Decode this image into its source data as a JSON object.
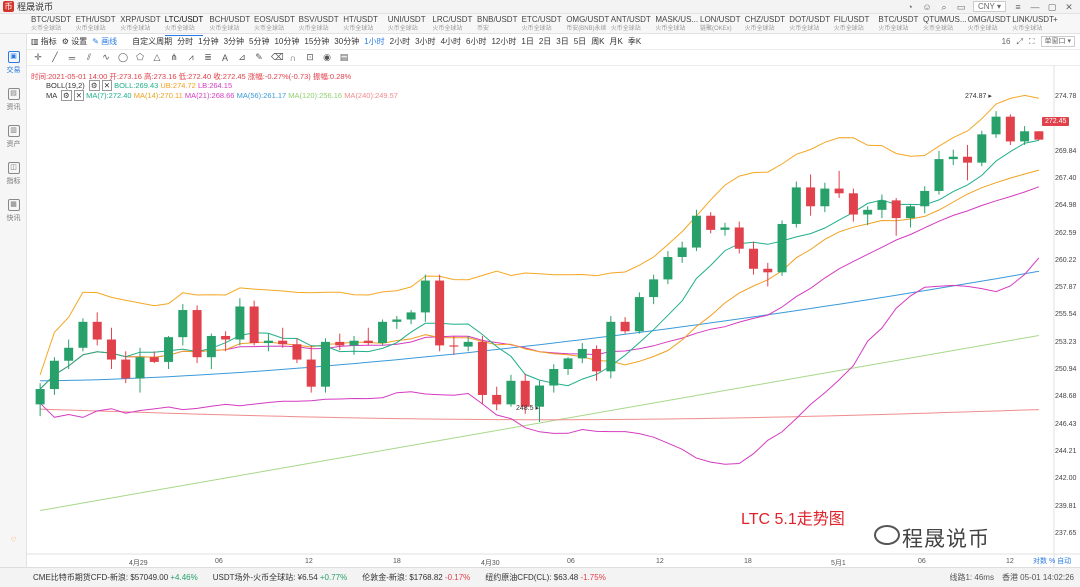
{
  "app": {
    "title": "程晟说币"
  },
  "titlebar": {
    "currency": "CNY"
  },
  "tickers": [
    {
      "pair": "BTC/USDT",
      "sub": "火币全球站"
    },
    {
      "pair": "ETH/USDT",
      "sub": "火币全球站"
    },
    {
      "pair": "XRP/USDT",
      "sub": "火币全球站"
    },
    {
      "pair": "LTC/USDT",
      "sub": "火币全球站"
    },
    {
      "pair": "BCH/USDT",
      "sub": "火币全球站"
    },
    {
      "pair": "EOS/USDT",
      "sub": "火币全球站"
    },
    {
      "pair": "BSV/USDT",
      "sub": "火币全球站"
    },
    {
      "pair": "HT/USDT",
      "sub": "火币全球站"
    },
    {
      "pair": "UNI/USDT",
      "sub": "火币全球站"
    },
    {
      "pair": "LRC/USDT",
      "sub": "火币全球站"
    },
    {
      "pair": "BNB/USDT",
      "sub": "币安"
    },
    {
      "pair": "ETC/USDT",
      "sub": "火币全球站"
    },
    {
      "pair": "OMG/USDT",
      "sub": "币安(BNB)永续"
    },
    {
      "pair": "ANT/USDT",
      "sub": "火币全球站"
    },
    {
      "pair": "MASK/US...",
      "sub": "火币全球站"
    },
    {
      "pair": "LON/USDT",
      "sub": "链聚(OKEx)"
    },
    {
      "pair": "CHZ/USDT",
      "sub": "火币全球站"
    },
    {
      "pair": "DOT/USDT",
      "sub": "火币全球站"
    },
    {
      "pair": "FIL/USDT",
      "sub": "火币全球站"
    },
    {
      "pair": "BTC/USDT",
      "sub": "火币全球站"
    },
    {
      "pair": "QTUM/US...",
      "sub": "火币全球站"
    },
    {
      "pair": "OMG/USDT",
      "sub": "火币全球站"
    },
    {
      "pair": "LINK/USDT",
      "sub": "火币全球站"
    }
  ],
  "sidebar": [
    {
      "label": "交易",
      "icon": "trade-icon"
    },
    {
      "label": "资讯",
      "icon": "news-icon"
    },
    {
      "label": "资产",
      "icon": "assets-icon"
    },
    {
      "label": "指标",
      "icon": "indicator-icon"
    },
    {
      "label": "快讯",
      "icon": "flash-icon"
    }
  ],
  "toolbar": {
    "indicator": "指标",
    "settings": "设置",
    "drawing": "画线",
    "custom_period": "自定义周期",
    "periods": [
      "分时",
      "1分钟",
      "3分钟",
      "5分钟",
      "10分钟",
      "15分钟",
      "30分钟",
      "1小时",
      "2小时",
      "3小时",
      "4小时",
      "6小时",
      "12小时",
      "1日",
      "2日",
      "3日",
      "5日",
      "周K",
      "月K",
      "季K"
    ],
    "active_period": "1小时",
    "zoom": "16",
    "layout": "单窗口"
  },
  "info": {
    "ohlc": "时间:2021-05-01 14:00  开:273.16  高:273.16  低:272.40  收:272.45  涨幅:-0.27%(-0.73)  振幅:0.28%",
    "boll_name": "BOLL(19,2)",
    "boll_mid": "BOLL:269.43",
    "boll_ub": "UB:274.72",
    "boll_lb": "LB:264.15",
    "ma_name": "MA",
    "ma7": "MA(7):272.40",
    "ma14": "MA(14):270.11",
    "ma21": "MA(21):268.66",
    "ma56": "MA(56):261.17",
    "ma120": "MA(120):256.16",
    "ma240": "MA(240):249.57"
  },
  "colors": {
    "up": "#27a06a",
    "down": "#e0414b",
    "boll": "#f5a623",
    "ma7": "#1fae8a",
    "ma14": "#f0a020",
    "ma21": "#d43bc0",
    "ma56": "#3a9ad9",
    "ma120": "#a8d88a",
    "ma240": "#f08c8c"
  },
  "price_tag": "272.45",
  "annotations": {
    "high": "274.87",
    "low": "248.5"
  },
  "watermark": "LTC 5.1走势图",
  "brand": "程晟说币",
  "bottom_controls": "对数 % 自动",
  "statusbar": {
    "items": [
      {
        "label": "CME比特币期货CFD-新浪:",
        "value": "$57049.00",
        "change": "+4.46%",
        "dir": "up"
      },
      {
        "label": "USDT场外-火币全球站:",
        "value": "¥6.54",
        "change": "+0.77%",
        "dir": "up"
      },
      {
        "label": "伦敦金-新浪:",
        "value": "$1768.82",
        "change": "-0.17%",
        "dir": "down"
      },
      {
        "label": "纽约原油CFD(CL):",
        "value": "$63.48",
        "change": "-1.75%",
        "dir": "down"
      }
    ],
    "latency": "线路1: 46ms",
    "time": "香港 05-01 14:02:26"
  },
  "chart_data": {
    "type": "candlestick",
    "ylim": [
      237.65,
      277.0
    ],
    "y_ticks": [
      "274.78",
      "272.45",
      "269.84",
      "267.40",
      "264.98",
      "262.59",
      "260.22",
      "257.87",
      "255.54",
      "253.23",
      "250.94",
      "248.68",
      "246.43",
      "244.21",
      "242.00",
      "239.81",
      "237.65"
    ],
    "x_ticks": [
      "4月29",
      "06",
      "12",
      "18",
      "4月30",
      "06",
      "12",
      "18",
      "5月1",
      "06",
      "12"
    ],
    "candles": [
      {
        "o": 250.0,
        "h": 251.8,
        "l": 249.0,
        "c": 251.3
      },
      {
        "o": 251.3,
        "h": 254.0,
        "l": 250.8,
        "c": 253.7
      },
      {
        "o": 253.7,
        "h": 255.5,
        "l": 253.0,
        "c": 254.8
      },
      {
        "o": 254.8,
        "h": 257.3,
        "l": 254.5,
        "c": 257.0
      },
      {
        "o": 257.0,
        "h": 257.8,
        "l": 255.0,
        "c": 255.5
      },
      {
        "o": 255.5,
        "h": 256.5,
        "l": 253.0,
        "c": 253.8
      },
      {
        "o": 253.8,
        "h": 254.5,
        "l": 251.8,
        "c": 252.2
      },
      {
        "o": 252.2,
        "h": 254.8,
        "l": 251.0,
        "c": 254.0
      },
      {
        "o": 254.0,
        "h": 254.5,
        "l": 253.5,
        "c": 253.6
      },
      {
        "o": 253.6,
        "h": 255.8,
        "l": 253.0,
        "c": 255.7
      },
      {
        "o": 255.7,
        "h": 258.5,
        "l": 255.0,
        "c": 258.0
      },
      {
        "o": 258.0,
        "h": 258.4,
        "l": 253.5,
        "c": 254.0
      },
      {
        "o": 254.0,
        "h": 256.0,
        "l": 253.0,
        "c": 255.8
      },
      {
        "o": 255.8,
        "h": 256.2,
        "l": 254.5,
        "c": 255.5
      },
      {
        "o": 255.5,
        "h": 259.0,
        "l": 255.0,
        "c": 258.3
      },
      {
        "o": 258.3,
        "h": 258.8,
        "l": 255.0,
        "c": 255.2
      },
      {
        "o": 255.2,
        "h": 256.0,
        "l": 254.5,
        "c": 255.4
      },
      {
        "o": 255.4,
        "h": 256.5,
        "l": 254.8,
        "c": 255.1
      },
      {
        "o": 255.1,
        "h": 255.6,
        "l": 253.5,
        "c": 253.8
      },
      {
        "o": 253.8,
        "h": 255.0,
        "l": 251.0,
        "c": 251.5
      },
      {
        "o": 251.5,
        "h": 255.6,
        "l": 251.0,
        "c": 255.3
      },
      {
        "o": 255.3,
        "h": 256.0,
        "l": 254.6,
        "c": 255.0
      },
      {
        "o": 255.0,
        "h": 255.8,
        "l": 254.2,
        "c": 255.4
      },
      {
        "o": 255.4,
        "h": 256.5,
        "l": 255.0,
        "c": 255.2
      },
      {
        "o": 255.2,
        "h": 257.2,
        "l": 255.0,
        "c": 257.0
      },
      {
        "o": 257.0,
        "h": 257.5,
        "l": 256.4,
        "c": 257.2
      },
      {
        "o": 257.2,
        "h": 258.0,
        "l": 256.8,
        "c": 257.8
      },
      {
        "o": 257.8,
        "h": 261.0,
        "l": 257.0,
        "c": 260.5
      },
      {
        "o": 260.5,
        "h": 261.0,
        "l": 254.5,
        "c": 255.0
      },
      {
        "o": 255.0,
        "h": 255.8,
        "l": 254.2,
        "c": 254.9
      },
      {
        "o": 254.9,
        "h": 255.8,
        "l": 254.5,
        "c": 255.3
      },
      {
        "o": 255.3,
        "h": 255.8,
        "l": 250.0,
        "c": 250.8
      },
      {
        "o": 250.8,
        "h": 251.5,
        "l": 249.5,
        "c": 250.0
      },
      {
        "o": 250.0,
        "h": 252.5,
        "l": 249.8,
        "c": 252.0
      },
      {
        "o": 252.0,
        "h": 252.6,
        "l": 249.2,
        "c": 249.8
      },
      {
        "o": 249.8,
        "h": 252.0,
        "l": 248.5,
        "c": 251.6
      },
      {
        "o": 251.6,
        "h": 253.4,
        "l": 251.0,
        "c": 253.0
      },
      {
        "o": 253.0,
        "h": 254.0,
        "l": 252.5,
        "c": 253.9
      },
      {
        "o": 253.9,
        "h": 255.2,
        "l": 253.5,
        "c": 254.7
      },
      {
        "o": 254.7,
        "h": 255.0,
        "l": 252.0,
        "c": 252.8
      },
      {
        "o": 252.8,
        "h": 257.5,
        "l": 252.2,
        "c": 257.0
      },
      {
        "o": 257.0,
        "h": 257.4,
        "l": 256.0,
        "c": 256.2
      },
      {
        "o": 256.2,
        "h": 259.5,
        "l": 256.0,
        "c": 259.1
      },
      {
        "o": 259.1,
        "h": 261.0,
        "l": 258.5,
        "c": 260.6
      },
      {
        "o": 260.6,
        "h": 263.0,
        "l": 260.2,
        "c": 262.5
      },
      {
        "o": 262.5,
        "h": 263.8,
        "l": 262.0,
        "c": 263.3
      },
      {
        "o": 263.3,
        "h": 266.5,
        "l": 263.0,
        "c": 266.0
      },
      {
        "o": 266.0,
        "h": 266.3,
        "l": 264.5,
        "c": 264.8
      },
      {
        "o": 264.8,
        "h": 265.4,
        "l": 264.3,
        "c": 265.0
      },
      {
        "o": 265.0,
        "h": 265.5,
        "l": 262.8,
        "c": 263.2
      },
      {
        "o": 263.2,
        "h": 263.8,
        "l": 261.0,
        "c": 261.5
      },
      {
        "o": 261.5,
        "h": 262.0,
        "l": 260.0,
        "c": 261.2
      },
      {
        "o": 261.2,
        "h": 265.6,
        "l": 260.9,
        "c": 265.3
      },
      {
        "o": 265.3,
        "h": 268.9,
        "l": 265.0,
        "c": 268.4
      },
      {
        "o": 268.4,
        "h": 269.5,
        "l": 266.0,
        "c": 266.8
      },
      {
        "o": 266.8,
        "h": 268.8,
        "l": 266.3,
        "c": 268.3
      },
      {
        "o": 268.3,
        "h": 269.8,
        "l": 267.5,
        "c": 267.9
      },
      {
        "o": 267.9,
        "h": 268.3,
        "l": 265.5,
        "c": 266.1
      },
      {
        "o": 266.1,
        "h": 266.8,
        "l": 265.2,
        "c": 266.5
      },
      {
        "o": 266.5,
        "h": 267.8,
        "l": 265.8,
        "c": 267.3
      },
      {
        "o": 267.3,
        "h": 267.5,
        "l": 264.3,
        "c": 265.8
      },
      {
        "o": 265.8,
        "h": 267.0,
        "l": 265.0,
        "c": 266.8
      },
      {
        "o": 266.8,
        "h": 268.5,
        "l": 266.2,
        "c": 268.1
      },
      {
        "o": 268.1,
        "h": 271.5,
        "l": 267.8,
        "c": 270.8
      },
      {
        "o": 270.8,
        "h": 271.6,
        "l": 270.3,
        "c": 271.0
      },
      {
        "o": 271.0,
        "h": 272.0,
        "l": 269.0,
        "c": 270.5
      },
      {
        "o": 270.5,
        "h": 273.2,
        "l": 270.2,
        "c": 272.9
      },
      {
        "o": 272.9,
        "h": 274.87,
        "l": 272.6,
        "c": 274.4
      },
      {
        "o": 274.4,
        "h": 274.6,
        "l": 272.0,
        "c": 272.3
      },
      {
        "o": 272.3,
        "h": 273.6,
        "l": 272.0,
        "c": 273.16
      },
      {
        "o": 273.16,
        "h": 273.16,
        "l": 272.4,
        "c": 272.45
      }
    ]
  }
}
